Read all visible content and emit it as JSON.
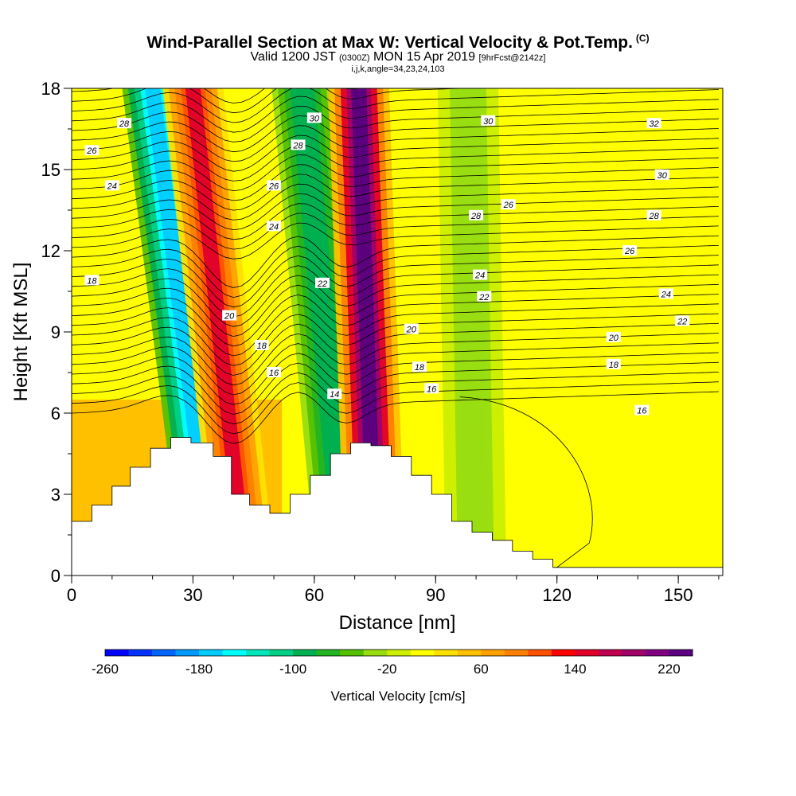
{
  "title": {
    "main": "Wind-Parallel Section at Max W: Vertical Velocity & Pot.Temp.",
    "copyright": "(C)",
    "valid_prefix": "Valid 1200 JST",
    "valid_utc": "(0300Z)",
    "valid_date": "MON 15 Apr 2019",
    "forecast": "[9hrFcst@2142z]",
    "indices": "i,j,k,angle=34,23,24,103"
  },
  "chart_data": {
    "type": "heatmap",
    "xlabel": "Distance [nm]",
    "ylabel": "Height [Kft MSL]",
    "xlim": [
      0,
      161
    ],
    "ylim": [
      0,
      18
    ],
    "x_ticks": [
      0,
      30,
      60,
      90,
      120,
      150
    ],
    "y_ticks": [
      0,
      3,
      6,
      9,
      12,
      15,
      18
    ],
    "colorbar": {
      "label": "Vertical Velocity [cm/s]",
      "tick_labels": [
        -260,
        -180,
        -100,
        -20,
        60,
        140,
        220
      ],
      "colors": [
        "#0000ff",
        "#0033ff",
        "#0066ff",
        "#0099ff",
        "#00ccff",
        "#00ffff",
        "#00e6b8",
        "#00d087",
        "#00b050",
        "#22b422",
        "#55c000",
        "#99dd11",
        "#ccee00",
        "#ffff00",
        "#ffe000",
        "#ffc000",
        "#ffa000",
        "#ff8000",
        "#ff5000",
        "#ff0000",
        "#e0002a",
        "#c00050",
        "#a00068",
        "#800080",
        "#5a0080"
      ]
    },
    "updraft_bands": [
      {
        "top_center_x": 30,
        "bottom_center_x": 43,
        "peak_cm_s": 140
      },
      {
        "top_center_x": 71,
        "bottom_center_x": 75,
        "peak_cm_s": 220
      }
    ],
    "downdraft_bands": [
      {
        "top_center_x": 20,
        "bottom_center_x": 35,
        "min_cm_s": -180
      },
      {
        "top_center_x": 57,
        "bottom_center_x": 68,
        "min_cm_s": -100
      },
      {
        "top_center_x": 98,
        "bottom_center_x": 100,
        "min_cm_s": -40
      }
    ],
    "terrain_kft": [
      [
        0,
        2
      ],
      [
        5,
        2
      ],
      [
        5,
        2.6
      ],
      [
        10,
        2.6
      ],
      [
        10,
        3.3
      ],
      [
        14.5,
        3.3
      ],
      [
        14.5,
        4
      ],
      [
        19.5,
        4
      ],
      [
        19.5,
        4.7
      ],
      [
        24.5,
        4.7
      ],
      [
        24.5,
        5.1
      ],
      [
        29.5,
        5.1
      ],
      [
        29.5,
        4.9
      ],
      [
        35,
        4.9
      ],
      [
        35,
        4.4
      ],
      [
        39.5,
        4.4
      ],
      [
        39.5,
        3
      ],
      [
        44,
        3
      ],
      [
        44,
        2.6
      ],
      [
        49,
        2.6
      ],
      [
        49,
        2.3
      ],
      [
        54,
        2.3
      ],
      [
        54,
        3
      ],
      [
        59,
        3
      ],
      [
        59,
        3.7
      ],
      [
        64,
        3.7
      ],
      [
        64,
        4.5
      ],
      [
        69,
        4.5
      ],
      [
        69,
        4.9
      ],
      [
        74,
        4.9
      ],
      [
        74,
        4.8
      ],
      [
        79,
        4.8
      ],
      [
        79,
        4.4
      ],
      [
        84,
        4.4
      ],
      [
        84,
        3.7
      ],
      [
        89,
        3.7
      ],
      [
        89,
        3
      ],
      [
        94,
        3
      ],
      [
        94,
        2
      ],
      [
        99,
        2
      ],
      [
        99,
        1.6
      ],
      [
        104,
        1.6
      ],
      [
        104,
        1.3
      ],
      [
        109,
        1.3
      ],
      [
        109,
        0.9
      ],
      [
        114,
        0.9
      ],
      [
        114,
        0.6
      ],
      [
        119,
        0.6
      ],
      [
        119,
        0.3
      ],
      [
        161,
        0.3
      ]
    ],
    "theta_contour_labels": [
      {
        "text": "28",
        "x": 13,
        "y": 16.7
      },
      {
        "text": "26",
        "x": 5,
        "y": 15.7
      },
      {
        "text": "24",
        "x": 10,
        "y": 14.4
      },
      {
        "text": "18",
        "x": 5,
        "y": 10.9
      },
      {
        "text": "30",
        "x": 60,
        "y": 16.9
      },
      {
        "text": "28",
        "x": 56,
        "y": 15.9
      },
      {
        "text": "26",
        "x": 50,
        "y": 14.4
      },
      {
        "text": "24",
        "x": 50,
        "y": 12.9
      },
      {
        "text": "22",
        "x": 62,
        "y": 10.8
      },
      {
        "text": "20",
        "x": 39,
        "y": 9.6
      },
      {
        "text": "18",
        "x": 47,
        "y": 8.5
      },
      {
        "text": "16",
        "x": 50,
        "y": 7.5
      },
      {
        "text": "14",
        "x": 65,
        "y": 6.7
      },
      {
        "text": "30",
        "x": 103,
        "y": 16.8
      },
      {
        "text": "28",
        "x": 100,
        "y": 13.3
      },
      {
        "text": "26",
        "x": 108,
        "y": 13.7
      },
      {
        "text": "24",
        "x": 101,
        "y": 11.1
      },
      {
        "text": "22",
        "x": 102,
        "y": 10.3
      },
      {
        "text": "20",
        "x": 84,
        "y": 9.1
      },
      {
        "text": "18",
        "x": 86,
        "y": 7.7
      },
      {
        "text": "16",
        "x": 89,
        "y": 6.9
      },
      {
        "text": "32",
        "x": 144,
        "y": 16.7
      },
      {
        "text": "30",
        "x": 146,
        "y": 14.8
      },
      {
        "text": "28",
        "x": 144,
        "y": 13.3
      },
      {
        "text": "26",
        "x": 138,
        "y": 12
      },
      {
        "text": "24",
        "x": 147,
        "y": 10.4
      },
      {
        "text": "22",
        "x": 151,
        "y": 9.4
      },
      {
        "text": "20",
        "x": 134,
        "y": 8.8
      },
      {
        "text": "18",
        "x": 134,
        "y": 7.8
      },
      {
        "text": "16",
        "x": 141,
        "y": 6.1
      }
    ]
  }
}
